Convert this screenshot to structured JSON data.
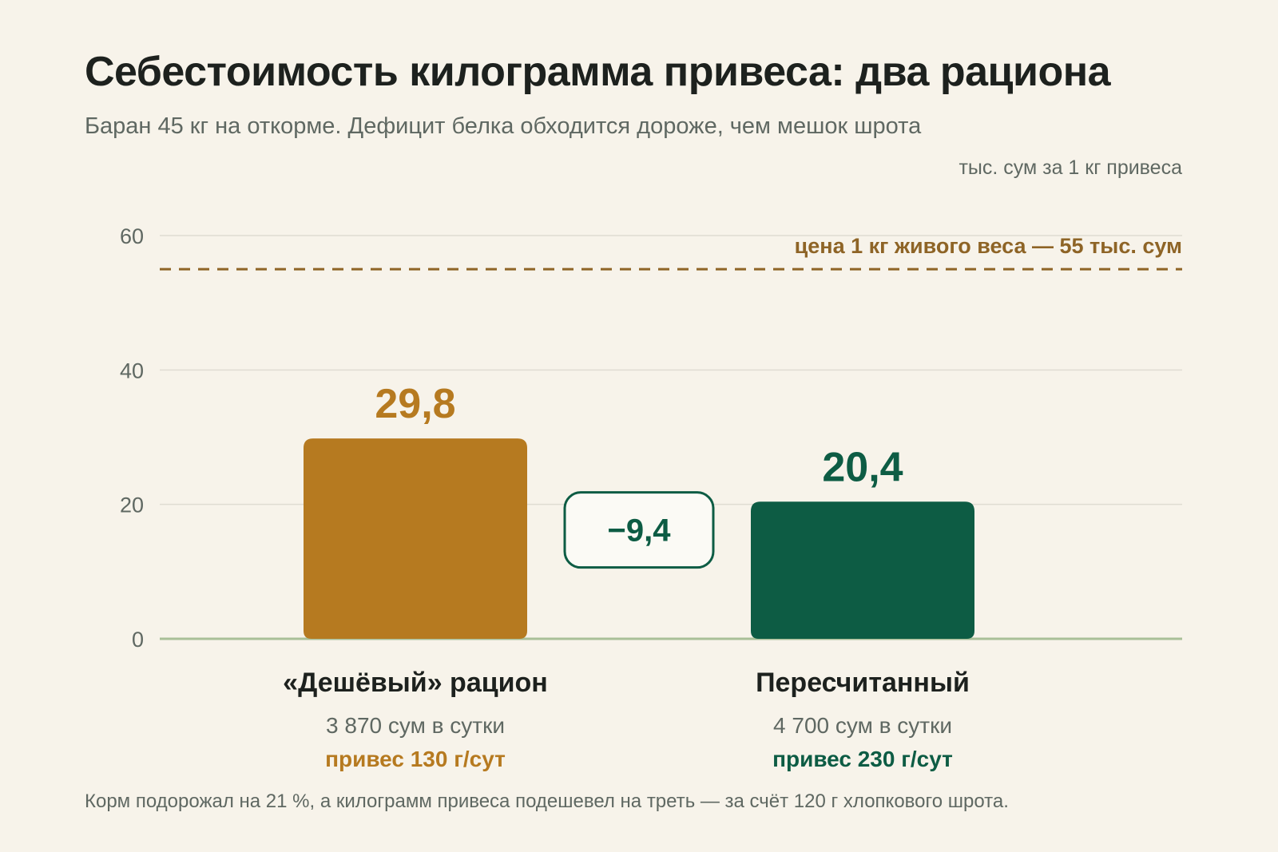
{
  "title": "Себестоимость килограмма привеса: два рациона",
  "subtitle": "Баран 45 кг на откорме. Дефицит белка обходится дороже, чем мешок шрота",
  "footnote": "Корм подорожал на 21 %, а килограмм привеса подешевел на треть — за счёт 120 г хлопкового шрота.",
  "colors": {
    "cheap": "#b67a20",
    "recalc": "#0d5c44",
    "reference": "#8e6426",
    "grid": "#dfdcd2",
    "baseline": "#a9bf98",
    "delta_bg": "#fbfaf5"
  },
  "chart_data": {
    "type": "bar",
    "ylabel": "тыс. сум за 1 кг привеса",
    "ylim": [
      0,
      60
    ],
    "yticks": [
      0,
      20,
      40,
      60
    ],
    "ytick_labels": [
      "0",
      "20",
      "40",
      "60"
    ],
    "grid": true,
    "categories": [
      "«Дешёвый» рацион",
      "Пересчитанный"
    ],
    "values": [
      29.8,
      20.4
    ],
    "value_labels": [
      "29,8",
      "20,4"
    ],
    "category_details": [
      {
        "cost": "3 870 сум в сутки",
        "gain": "привес 130 г/сут"
      },
      {
        "cost": "4 700 сум в сутки",
        "gain": "привес 230 г/сут"
      }
    ],
    "reference_line": {
      "value": 55,
      "label": "цена 1 кг живого веса — 55 тыс. сум"
    },
    "difference_label": "−9,4"
  }
}
